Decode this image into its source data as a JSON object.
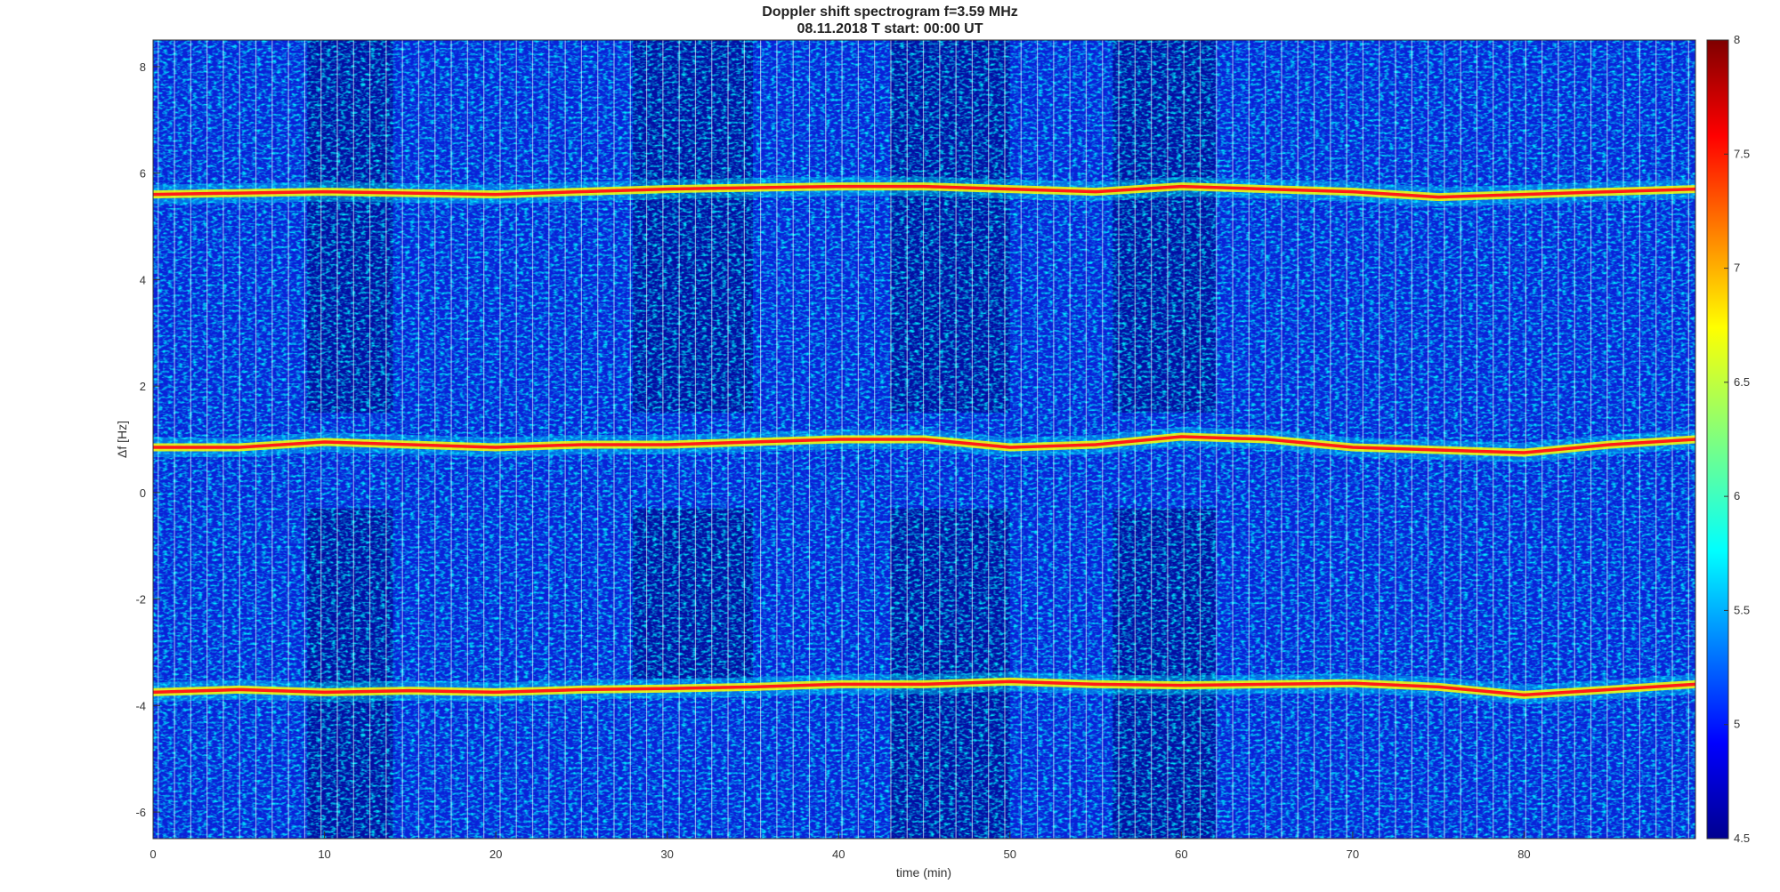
{
  "chart_data": {
    "type": "heatmap",
    "title": "Doppler shift spectrogram f=3.59 MHz",
    "subtitle": "08.11.2018   T start: 00:00 UT",
    "xlabel": "time (min)",
    "ylabel": "Δf [Hz]",
    "xlim": [
      0,
      90
    ],
    "ylim": [
      -6.5,
      8.5
    ],
    "xticks": [
      "0",
      "10",
      "20",
      "30",
      "40",
      "50",
      "60",
      "70",
      "80"
    ],
    "yticks": [
      "-6",
      "-4",
      "-2",
      "0",
      "2",
      "4",
      "6",
      "8"
    ],
    "colorbar": {
      "colormap": "jet",
      "range": [
        4.5,
        8
      ],
      "ticks": [
        "4.5",
        "5",
        "5.5",
        "6",
        "6.5",
        "7",
        "7.5",
        "8"
      ]
    },
    "signal_traces": [
      {
        "time": [
          0,
          10,
          20,
          30,
          40,
          45,
          50,
          55,
          60,
          65,
          70,
          75,
          80,
          85,
          90
        ],
        "df": [
          5.6,
          5.65,
          5.6,
          5.7,
          5.75,
          5.75,
          5.7,
          5.65,
          5.75,
          5.7,
          5.65,
          5.55,
          5.6,
          5.65,
          5.7
        ]
      },
      {
        "time": [
          0,
          5,
          10,
          15,
          20,
          25,
          30,
          35,
          40,
          45,
          50,
          55,
          60,
          65,
          70,
          75,
          80,
          85,
          90
        ],
        "df": [
          0.85,
          0.85,
          0.95,
          0.9,
          0.85,
          0.9,
          0.9,
          0.95,
          1.0,
          1.0,
          0.85,
          0.9,
          1.05,
          1.0,
          0.85,
          0.8,
          0.75,
          0.9,
          1.0
        ]
      },
      {
        "time": [
          0,
          5,
          10,
          15,
          20,
          25,
          30,
          35,
          40,
          45,
          50,
          55,
          60,
          65,
          70,
          75,
          80,
          85,
          90
        ],
        "df": [
          -3.75,
          -3.7,
          -3.75,
          -3.72,
          -3.75,
          -3.7,
          -3.68,
          -3.65,
          -3.6,
          -3.6,
          -3.55,
          -3.6,
          -3.62,
          -3.6,
          -3.58,
          -3.65,
          -3.8,
          -3.7,
          -3.6
        ]
      }
    ]
  }
}
